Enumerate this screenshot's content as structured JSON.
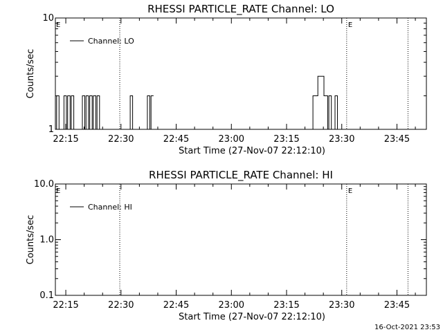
{
  "footer": {
    "date_stamp": "16-Oct-2021 23:53"
  },
  "chart_data": [
    {
      "type": "line",
      "title": "RHESSI PARTICLE_RATE Channel: LO",
      "xlabel": "Start Time (27-Nov-07 22:12:10)",
      "ylabel": "Counts/sec",
      "y_scale": "log",
      "ylim": [
        1,
        10
      ],
      "y_tick_labels": [
        "1",
        "10"
      ],
      "xlim": [
        "22:12:10",
        "23:53:00"
      ],
      "x_tick_labels": [
        "22:15",
        "22:30",
        "22:45",
        "23:00",
        "23:15",
        "23:30",
        "23:45"
      ],
      "grid": false,
      "legend": {
        "placement": "top-left",
        "entries": [
          "Channel: LO"
        ]
      },
      "event_lines": [
        {
          "time": "22:29:40",
          "label": ""
        },
        {
          "time": "23:31:20",
          "label": "E"
        },
        {
          "time": "23:48:00",
          "label": ""
        }
      ],
      "corner_marker": "E",
      "series": [
        {
          "name": "Channel: LO",
          "x": [
            "22:12:10",
            "22:12:30",
            "22:12:50",
            "22:13:10",
            "22:13:30",
            "22:13:50",
            "22:14:10",
            "22:14:30",
            "22:14:50",
            "22:15:10",
            "22:15:30",
            "22:15:50",
            "22:16:10",
            "22:16:30",
            "22:16:50",
            "22:17:10",
            "22:17:30",
            "22:17:50",
            "22:18:10",
            "22:18:30",
            "22:18:50",
            "22:19:10",
            "22:19:30",
            "22:19:50",
            "22:20:10",
            "22:20:30",
            "22:20:50",
            "22:21:10",
            "22:21:30",
            "22:21:50",
            "22:22:10",
            "22:22:30",
            "22:22:50",
            "22:23:10",
            "22:23:30",
            "22:23:50",
            "22:24:10",
            "22:24:30",
            "22:24:50",
            "22:25:10",
            "22:25:30",
            "22:25:50",
            "22:26:10",
            "22:26:30",
            "22:26:50",
            "22:27:10",
            "22:27:30",
            "22:27:50",
            "22:28:10",
            "22:28:30",
            "22:28:50",
            "22:29:10",
            "22:29:30",
            "22:29:50",
            "22:30:10",
            "22:30:30",
            "22:30:50",
            "22:31:10",
            "22:31:30",
            "22:31:50",
            "22:32:10",
            "22:32:30",
            "22:32:50",
            "22:33:10",
            "22:33:30",
            "22:33:50",
            "22:34:10",
            "22:34:30",
            "22:34:50",
            "22:35:10",
            "22:35:30",
            "22:35:50",
            "22:36:10",
            "22:36:30",
            "22:36:50",
            "22:37:10",
            "22:37:30",
            "22:37:50",
            "22:38:10",
            "22:38:30",
            "23:21:30",
            "23:21:50",
            "23:22:10",
            "23:22:30",
            "23:22:50",
            "23:23:10",
            "23:23:30",
            "23:23:50",
            "23:24:10",
            "23:24:30",
            "23:24:50",
            "23:25:10",
            "23:25:30",
            "23:25:50",
            "23:26:10",
            "23:26:30",
            "23:26:50",
            "23:27:10",
            "23:27:30",
            "23:27:50",
            "23:28:10",
            "23:28:30",
            "23:28:50",
            "23:29:10",
            "23:29:30",
            "23:29:50",
            "23:30:10",
            "23:30:30"
          ],
          "values": [
            1,
            2,
            2,
            1,
            1,
            1,
            1,
            2,
            2,
            1,
            2,
            2,
            1,
            2,
            2,
            1,
            1,
            1,
            1,
            1,
            1,
            1,
            2,
            2,
            1,
            2,
            2,
            1,
            2,
            2,
            1,
            2,
            2,
            1,
            2,
            2,
            1,
            1,
            1,
            1,
            1,
            1,
            1,
            1,
            1,
            1,
            1,
            1,
            1,
            1,
            1,
            1,
            1,
            1,
            1,
            1,
            1,
            1,
            1,
            1,
            1,
            2,
            2,
            1,
            1,
            1,
            1,
            1,
            1,
            1,
            1,
            1,
            1,
            1,
            1,
            2,
            2,
            1,
            2,
            2,
            1,
            1,
            2,
            2,
            2,
            2,
            3,
            3,
            3,
            3,
            3,
            2,
            2,
            2,
            1,
            2,
            2,
            1,
            1,
            1,
            2,
            2,
            1,
            1,
            1,
            1,
            1,
            1
          ]
        }
      ]
    },
    {
      "type": "line",
      "title": "RHESSI PARTICLE_RATE Channel: HI",
      "xlabel": "Start Time (27-Nov-07 22:12:10)",
      "ylabel": "Counts/sec",
      "y_scale": "log",
      "ylim": [
        0.1,
        10
      ],
      "y_tick_labels": [
        "0.1",
        "1.0",
        "10.0"
      ],
      "xlim": [
        "22:12:10",
        "23:53:00"
      ],
      "x_tick_labels": [
        "22:15",
        "22:30",
        "22:45",
        "23:00",
        "23:15",
        "23:30",
        "23:45"
      ],
      "grid": false,
      "legend": {
        "placement": "top-left",
        "entries": [
          "Channel: HI"
        ]
      },
      "event_lines": [
        {
          "time": "22:29:40",
          "label": ""
        },
        {
          "time": "23:31:20",
          "label": "E"
        },
        {
          "time": "23:48:00",
          "label": ""
        }
      ],
      "corner_marker": "E",
      "series": [
        {
          "name": "Channel: HI",
          "x": [],
          "values": []
        }
      ]
    }
  ]
}
